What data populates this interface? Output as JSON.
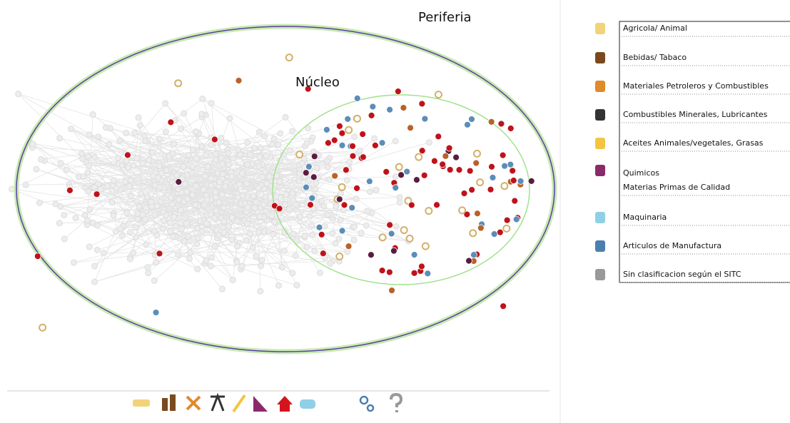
{
  "labels": {
    "periphery": "Periferia",
    "core": "Núcleo"
  },
  "legend": {
    "items": [
      "Agricola/ Animal",
      "Bebidas/ Tabaco",
      "Materiales Petroleros y Combustibles",
      "Combustibles Minerales, Lubricantes",
      "Aceites Animales/vegetales, Grasas",
      "Quimicos",
      "Materias Primas de Calidad",
      "Maquinaria",
      "Articulos de Manufactura",
      "Sin clasificacion según el SITC"
    ]
  }
}
